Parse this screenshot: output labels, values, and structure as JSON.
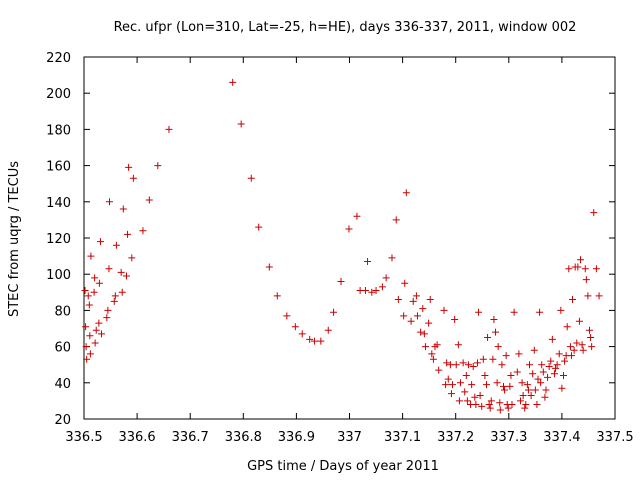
{
  "chart_data": {
    "type": "scatter",
    "title": "Rec. ufpr (Lon=310, Lat=-25, h=HE), days 336-337, 2011, window 002",
    "xlabel": "GPS time / Days of year 2011",
    "ylabel": "STEC from uqrg / TECUs",
    "xlim": [
      336.5,
      337.5
    ],
    "ylim": [
      20,
      220
    ],
    "x_ticks": [
      336.5,
      336.6,
      336.7,
      336.8,
      336.9,
      337.0,
      337.1,
      337.2,
      337.3,
      337.4,
      337.5
    ],
    "x_tick_labels": [
      "336.5",
      "336.6",
      "336.7",
      "336.8",
      "336.9",
      "337",
      "337.1",
      "337.2",
      "337.3",
      "337.4",
      "337.5"
    ],
    "y_ticks": [
      20,
      40,
      60,
      80,
      100,
      120,
      140,
      160,
      180,
      200,
      220
    ],
    "y_tick_labels": [
      "20",
      "40",
      "60",
      "80",
      "100",
      "120",
      "140",
      "160",
      "180",
      "200",
      "220"
    ],
    "grid": false,
    "legend": "none",
    "marker": "+",
    "marker_color": "#cc0000",
    "series": [
      {
        "points": [
          [
            336.502,
            91
          ],
          [
            336.503,
            71
          ],
          [
            336.504,
            60
          ],
          [
            336.505,
            53
          ],
          [
            336.508,
            88
          ],
          [
            336.51,
            83
          ],
          [
            336.511,
            66
          ],
          [
            336.512,
            56
          ],
          [
            336.513,
            110
          ],
          [
            336.519,
            90
          ],
          [
            336.52,
            98
          ],
          [
            336.521,
            62
          ],
          [
            336.523,
            69
          ],
          [
            336.528,
            73
          ],
          [
            336.529,
            95
          ],
          [
            336.531,
            118
          ],
          [
            336.533,
            67
          ],
          [
            336.543,
            76
          ],
          [
            336.545,
            80
          ],
          [
            336.547,
            103
          ],
          [
            336.548,
            140
          ],
          [
            336.557,
            85
          ],
          [
            336.559,
            88
          ],
          [
            336.561,
            116
          ],
          [
            336.57,
            101
          ],
          [
            336.572,
            90
          ],
          [
            336.574,
            136
          ],
          [
            336.58,
            99
          ],
          [
            336.582,
            122
          ],
          [
            336.584,
            159
          ],
          [
            336.59,
            109
          ],
          [
            336.593,
            153
          ],
          [
            336.611,
            124
          ],
          [
            336.623,
            141
          ],
          [
            336.639,
            160
          ],
          [
            336.66,
            180
          ],
          [
            336.78,
            206
          ],
          [
            336.796,
            183
          ],
          [
            336.815,
            153
          ],
          [
            336.829,
            126
          ],
          [
            336.849,
            104
          ],
          [
            336.864,
            88
          ],
          [
            336.882,
            77
          ],
          [
            336.898,
            71
          ],
          [
            336.911,
            67
          ],
          [
            336.925,
            64
          ],
          [
            336.934,
            63
          ],
          [
            336.946,
            63
          ],
          [
            336.96,
            69
          ],
          [
            336.97,
            79
          ],
          [
            336.984,
            96
          ],
          [
            336.999,
            125
          ],
          [
            337.014,
            132
          ],
          [
            337.02,
            91
          ],
          [
            337.03,
            91
          ],
          [
            337.034,
            107
          ],
          [
            337.042,
            90
          ],
          [
            337.05,
            91
          ],
          [
            337.062,
            93
          ],
          [
            337.069,
            98
          ],
          [
            337.08,
            109
          ],
          [
            337.088,
            130
          ],
          [
            337.092,
            86
          ],
          [
            337.102,
            77
          ],
          [
            337.104,
            95
          ],
          [
            337.107,
            145
          ],
          [
            337.116,
            74
          ],
          [
            337.12,
            85
          ],
          [
            337.126,
            88
          ],
          [
            337.128,
            77
          ],
          [
            337.134,
            68
          ],
          [
            337.138,
            81
          ],
          [
            337.141,
            67
          ],
          [
            337.143,
            60
          ],
          [
            337.149,
            73
          ],
          [
            337.152,
            86
          ],
          [
            337.155,
            56
          ],
          [
            337.158,
            53
          ],
          [
            337.161,
            60
          ],
          [
            337.165,
            61
          ],
          [
            337.168,
            47
          ],
          [
            337.178,
            80
          ],
          [
            337.181,
            39
          ],
          [
            337.183,
            51
          ],
          [
            337.186,
            42
          ],
          [
            337.19,
            50
          ],
          [
            337.192,
            34
          ],
          [
            337.194,
            39
          ],
          [
            337.198,
            75
          ],
          [
            337.201,
            50
          ],
          [
            337.205,
            61
          ],
          [
            337.207,
            30
          ],
          [
            337.209,
            40
          ],
          [
            337.214,
            51
          ],
          [
            337.217,
            35
          ],
          [
            337.22,
            44
          ],
          [
            337.222,
            30
          ],
          [
            337.224,
            50
          ],
          [
            337.228,
            28
          ],
          [
            337.23,
            39
          ],
          [
            337.233,
            49
          ],
          [
            337.236,
            32
          ],
          [
            337.238,
            28
          ],
          [
            337.241,
            51
          ],
          [
            337.243,
            79
          ],
          [
            337.246,
            33
          ],
          [
            337.249,
            27
          ],
          [
            337.252,
            53
          ],
          [
            337.255,
            44
          ],
          [
            337.258,
            39
          ],
          [
            337.26,
            65
          ],
          [
            337.263,
            28
          ],
          [
            337.265,
            26
          ],
          [
            337.267,
            30
          ],
          [
            337.27,
            53
          ],
          [
            337.272,
            75
          ],
          [
            337.275,
            68
          ],
          [
            337.278,
            40
          ],
          [
            337.28,
            60
          ],
          [
            337.283,
            29
          ],
          [
            337.284,
            25
          ],
          [
            337.287,
            50
          ],
          [
            337.29,
            38
          ],
          [
            337.292,
            36
          ],
          [
            337.295,
            55
          ],
          [
            337.297,
            28
          ],
          [
            337.299,
            26
          ],
          [
            337.302,
            38
          ],
          [
            337.304,
            44
          ],
          [
            337.306,
            28
          ],
          [
            337.31,
            79
          ],
          [
            337.316,
            46
          ],
          [
            337.319,
            56
          ],
          [
            337.322,
            30
          ],
          [
            337.325,
            40
          ],
          [
            337.327,
            33
          ],
          [
            337.33,
            26
          ],
          [
            337.332,
            28
          ],
          [
            337.335,
            39
          ],
          [
            337.337,
            36
          ],
          [
            337.339,
            50
          ],
          [
            337.342,
            33
          ],
          [
            337.345,
            45
          ],
          [
            337.348,
            58
          ],
          [
            337.35,
            36
          ],
          [
            337.353,
            28
          ],
          [
            337.355,
            42
          ],
          [
            337.358,
            79
          ],
          [
            337.36,
            40
          ],
          [
            337.362,
            50
          ],
          [
            337.365,
            46
          ],
          [
            337.368,
            32
          ],
          [
            337.37,
            36
          ],
          [
            337.373,
            43
          ],
          [
            337.376,
            49
          ],
          [
            337.379,
            52
          ],
          [
            337.382,
            64
          ],
          [
            337.386,
            45
          ],
          [
            337.388,
            48
          ],
          [
            337.391,
            50
          ],
          [
            337.395,
            56
          ],
          [
            337.398,
            80
          ],
          [
            337.4,
            37
          ],
          [
            337.403,
            44
          ],
          [
            337.405,
            52
          ],
          [
            337.408,
            55
          ],
          [
            337.41,
            71
          ],
          [
            337.413,
            103
          ],
          [
            337.416,
            60
          ],
          [
            337.418,
            55
          ],
          [
            337.42,
            86
          ],
          [
            337.423,
            58
          ],
          [
            337.425,
            104
          ],
          [
            337.428,
            62
          ],
          [
            337.43,
            104
          ],
          [
            337.433,
            74
          ],
          [
            337.435,
            108
          ],
          [
            337.438,
            61
          ],
          [
            337.44,
            58
          ],
          [
            337.444,
            103
          ],
          [
            337.446,
            97
          ],
          [
            337.449,
            88
          ],
          [
            337.452,
            69
          ],
          [
            337.454,
            65
          ],
          [
            337.456,
            60
          ],
          [
            337.46,
            134
          ],
          [
            337.465,
            103
          ],
          [
            337.47,
            88
          ]
        ]
      }
    ]
  }
}
